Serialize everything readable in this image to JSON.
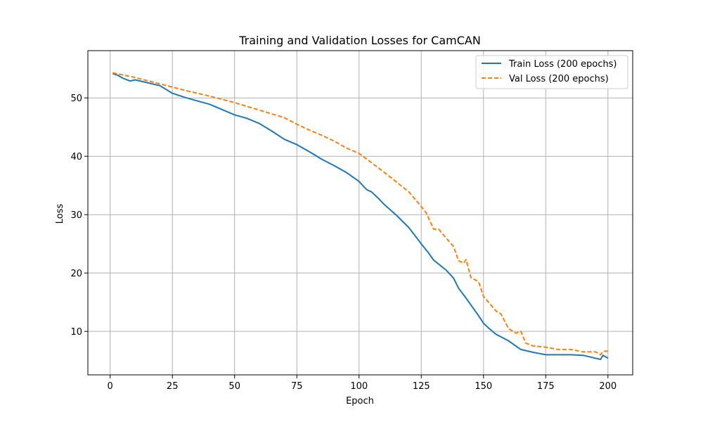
{
  "chart_data": {
    "type": "line",
    "title": "Training and Validation Losses for CamCAN",
    "xlabel": "Epoch",
    "ylabel": "Loss",
    "xlim": [
      -8.95,
      209.95
    ],
    "ylim": [
      2.55,
      58.1
    ],
    "xticks": [
      0,
      25,
      50,
      75,
      100,
      125,
      150,
      175,
      200
    ],
    "yticks": [
      10,
      20,
      30,
      40,
      50
    ],
    "grid": true,
    "legend_position": "top-right",
    "x_start": 1,
    "x_end": 200,
    "series": [
      {
        "name": "Train Loss (200 epochs)",
        "color": "#1f77b4",
        "style": "solid",
        "keypoints": [
          [
            1,
            54.2
          ],
          [
            3,
            53.9
          ],
          [
            5,
            53.4
          ],
          [
            8,
            52.9
          ],
          [
            10,
            53.1
          ],
          [
            15,
            52.6
          ],
          [
            20,
            52.1
          ],
          [
            25,
            50.8
          ],
          [
            30,
            50.1
          ],
          [
            35,
            49.5
          ],
          [
            40,
            48.9
          ],
          [
            45,
            48.0
          ],
          [
            50,
            47.1
          ],
          [
            55,
            46.5
          ],
          [
            60,
            45.6
          ],
          [
            65,
            44.3
          ],
          [
            70,
            42.9
          ],
          [
            75,
            42.0
          ],
          [
            80,
            40.8
          ],
          [
            85,
            39.5
          ],
          [
            90,
            38.4
          ],
          [
            95,
            37.2
          ],
          [
            100,
            35.7
          ],
          [
            103,
            34.3
          ],
          [
            105,
            33.9
          ],
          [
            108,
            32.7
          ],
          [
            110,
            31.8
          ],
          [
            115,
            29.9
          ],
          [
            120,
            27.8
          ],
          [
            125,
            25.0
          ],
          [
            128,
            23.4
          ],
          [
            130,
            22.2
          ],
          [
            135,
            20.5
          ],
          [
            138,
            19.1
          ],
          [
            140,
            17.4
          ],
          [
            143,
            15.7
          ],
          [
            145,
            14.5
          ],
          [
            148,
            12.7
          ],
          [
            150,
            11.4
          ],
          [
            152,
            10.6
          ],
          [
            155,
            9.5
          ],
          [
            160,
            8.4
          ],
          [
            165,
            6.9
          ],
          [
            170,
            6.4
          ],
          [
            175,
            6.0
          ],
          [
            180,
            6.0
          ],
          [
            185,
            6.0
          ],
          [
            190,
            5.9
          ],
          [
            195,
            5.4
          ],
          [
            197,
            5.2
          ],
          [
            198,
            5.9
          ],
          [
            200,
            5.4
          ]
        ]
      },
      {
        "name": "Val Loss (200 epochs)",
        "color": "#ff7f0e",
        "style": "dashed",
        "keypoints": [
          [
            1,
            54.3
          ],
          [
            10,
            53.5
          ],
          [
            20,
            52.4
          ],
          [
            30,
            51.3
          ],
          [
            40,
            50.3
          ],
          [
            50,
            49.2
          ],
          [
            60,
            47.9
          ],
          [
            70,
            46.6
          ],
          [
            75,
            45.5
          ],
          [
            80,
            44.5
          ],
          [
            85,
            43.6
          ],
          [
            90,
            42.6
          ],
          [
            95,
            41.4
          ],
          [
            100,
            40.5
          ],
          [
            105,
            38.9
          ],
          [
            110,
            37.3
          ],
          [
            115,
            35.6
          ],
          [
            120,
            33.9
          ],
          [
            125,
            31.4
          ],
          [
            127,
            30.3
          ],
          [
            130,
            27.5
          ],
          [
            132,
            27.5
          ],
          [
            135,
            26.0
          ],
          [
            138,
            24.5
          ],
          [
            140,
            22.1
          ],
          [
            142,
            21.7
          ],
          [
            143,
            22.3
          ],
          [
            145,
            19.2
          ],
          [
            148,
            18.5
          ],
          [
            150,
            16.0
          ],
          [
            153,
            14.5
          ],
          [
            155,
            13.5
          ],
          [
            157,
            13.0
          ],
          [
            160,
            10.5
          ],
          [
            163,
            9.7
          ],
          [
            165,
            10.0
          ],
          [
            167,
            8.0
          ],
          [
            170,
            7.5
          ],
          [
            175,
            7.3
          ],
          [
            180,
            6.9
          ],
          [
            185,
            6.9
          ],
          [
            190,
            6.5
          ],
          [
            195,
            6.5
          ],
          [
            197,
            6.0
          ],
          [
            198,
            6.6
          ],
          [
            200,
            6.6
          ]
        ]
      }
    ]
  }
}
